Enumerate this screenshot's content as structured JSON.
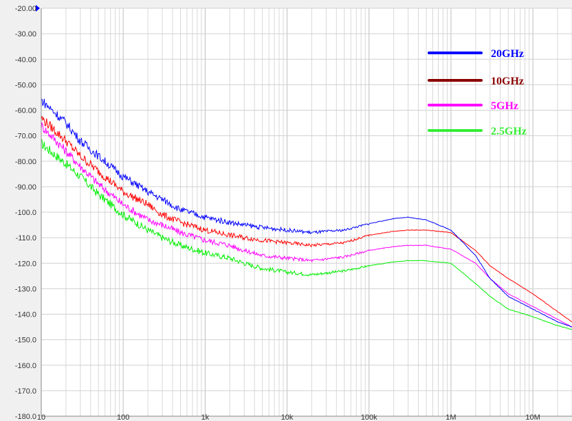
{
  "chart_data": {
    "type": "line",
    "title": "",
    "xlabel": "",
    "ylabel": "",
    "x_scale": "log",
    "xlim": [
      10,
      30000000
    ],
    "ylim": [
      -180,
      -20
    ],
    "grid": true,
    "legend_position": "top-right",
    "y_ticks": [
      "-20.00",
      "-30.00",
      "-40.00",
      "-50.00",
      "-60.00",
      "-70.00",
      "-80.00",
      "-90.00",
      "-100.0",
      "-110.0",
      "-120.0",
      "-130.0",
      "-140.0",
      "-150.0",
      "-160.0",
      "-170.0",
      "-180.0"
    ],
    "x_ticks": [
      {
        "value": 10,
        "label": "10"
      },
      {
        "value": 100,
        "label": "100"
      },
      {
        "value": 1000,
        "label": "1k"
      },
      {
        "value": 10000,
        "label": "10k"
      },
      {
        "value": 100000,
        "label": "100k"
      },
      {
        "value": 1000000,
        "label": "1M"
      },
      {
        "value": 10000000,
        "label": "10M"
      }
    ],
    "series": [
      {
        "name": "20GHz",
        "color": "#0000ff",
        "legend_color": "#0000ff",
        "points": [
          [
            10,
            -56
          ],
          [
            20,
            -65
          ],
          [
            30,
            -72
          ],
          [
            50,
            -78
          ],
          [
            100,
            -86
          ],
          [
            200,
            -92
          ],
          [
            300,
            -95
          ],
          [
            500,
            -99
          ],
          [
            1000,
            -102
          ],
          [
            2000,
            -104
          ],
          [
            3000,
            -105
          ],
          [
            5000,
            -106
          ],
          [
            10000,
            -107
          ],
          [
            20000,
            -108
          ],
          [
            50000,
            -107
          ],
          [
            100000,
            -104.5
          ],
          [
            200000,
            -102.5
          ],
          [
            300000,
            -102
          ],
          [
            500000,
            -103
          ],
          [
            1000000,
            -107
          ],
          [
            2000000,
            -117
          ],
          [
            3000000,
            -126
          ],
          [
            5000000,
            -133
          ],
          [
            10000000,
            -138
          ],
          [
            20000000,
            -143
          ],
          [
            30000000,
            -145
          ]
        ]
      },
      {
        "name": "10GHz",
        "color": "#ff0000",
        "legend_color": "#8b0000",
        "points": [
          [
            10,
            -63
          ],
          [
            20,
            -72
          ],
          [
            30,
            -78
          ],
          [
            50,
            -84
          ],
          [
            100,
            -92
          ],
          [
            200,
            -97
          ],
          [
            300,
            -101
          ],
          [
            500,
            -104
          ],
          [
            1000,
            -107
          ],
          [
            2000,
            -109
          ],
          [
            3000,
            -110
          ],
          [
            5000,
            -111
          ],
          [
            10000,
            -112
          ],
          [
            20000,
            -113
          ],
          [
            50000,
            -112
          ],
          [
            100000,
            -109
          ],
          [
            200000,
            -107.5
          ],
          [
            300000,
            -107
          ],
          [
            500000,
            -107
          ],
          [
            1000000,
            -108
          ],
          [
            2000000,
            -115
          ],
          [
            3000000,
            -121
          ],
          [
            5000000,
            -126
          ],
          [
            10000000,
            -132
          ],
          [
            20000000,
            -139
          ],
          [
            30000000,
            -143
          ]
        ]
      },
      {
        "name": "5GHz",
        "color": "#ff00ff",
        "legend_color": "#ff00ff",
        "points": [
          [
            10,
            -66
          ],
          [
            20,
            -76
          ],
          [
            30,
            -82
          ],
          [
            50,
            -89
          ],
          [
            100,
            -97
          ],
          [
            200,
            -103
          ],
          [
            300,
            -105
          ],
          [
            500,
            -108
          ],
          [
            1000,
            -111
          ],
          [
            2000,
            -113
          ],
          [
            3000,
            -115
          ],
          [
            5000,
            -117
          ],
          [
            10000,
            -118
          ],
          [
            20000,
            -119
          ],
          [
            50000,
            -117.5
          ],
          [
            100000,
            -115
          ],
          [
            200000,
            -113.5
          ],
          [
            300000,
            -113
          ],
          [
            500000,
            -113
          ],
          [
            1000000,
            -114.5
          ],
          [
            2000000,
            -120
          ],
          [
            3000000,
            -126
          ],
          [
            5000000,
            -132
          ],
          [
            10000000,
            -137
          ],
          [
            20000000,
            -142
          ],
          [
            30000000,
            -145
          ]
        ]
      },
      {
        "name": "2.5GHz",
        "color": "#00ee00",
        "legend_color": "#33ee33",
        "points": [
          [
            10,
            -73
          ],
          [
            20,
            -81
          ],
          [
            30,
            -86
          ],
          [
            50,
            -93
          ],
          [
            100,
            -101
          ],
          [
            200,
            -107
          ],
          [
            300,
            -110
          ],
          [
            500,
            -113
          ],
          [
            1000,
            -116
          ],
          [
            2000,
            -118
          ],
          [
            3000,
            -120
          ],
          [
            5000,
            -122
          ],
          [
            10000,
            -123.5
          ],
          [
            20000,
            -124.5
          ],
          [
            50000,
            -123
          ],
          [
            100000,
            -121
          ],
          [
            200000,
            -119.5
          ],
          [
            300000,
            -119
          ],
          [
            500000,
            -119
          ],
          [
            1000000,
            -120
          ],
          [
            2000000,
            -128
          ],
          [
            3000000,
            -133
          ],
          [
            5000000,
            -138
          ],
          [
            10000000,
            -141
          ],
          [
            20000000,
            -144.5
          ],
          [
            30000000,
            -146
          ]
        ]
      }
    ]
  }
}
